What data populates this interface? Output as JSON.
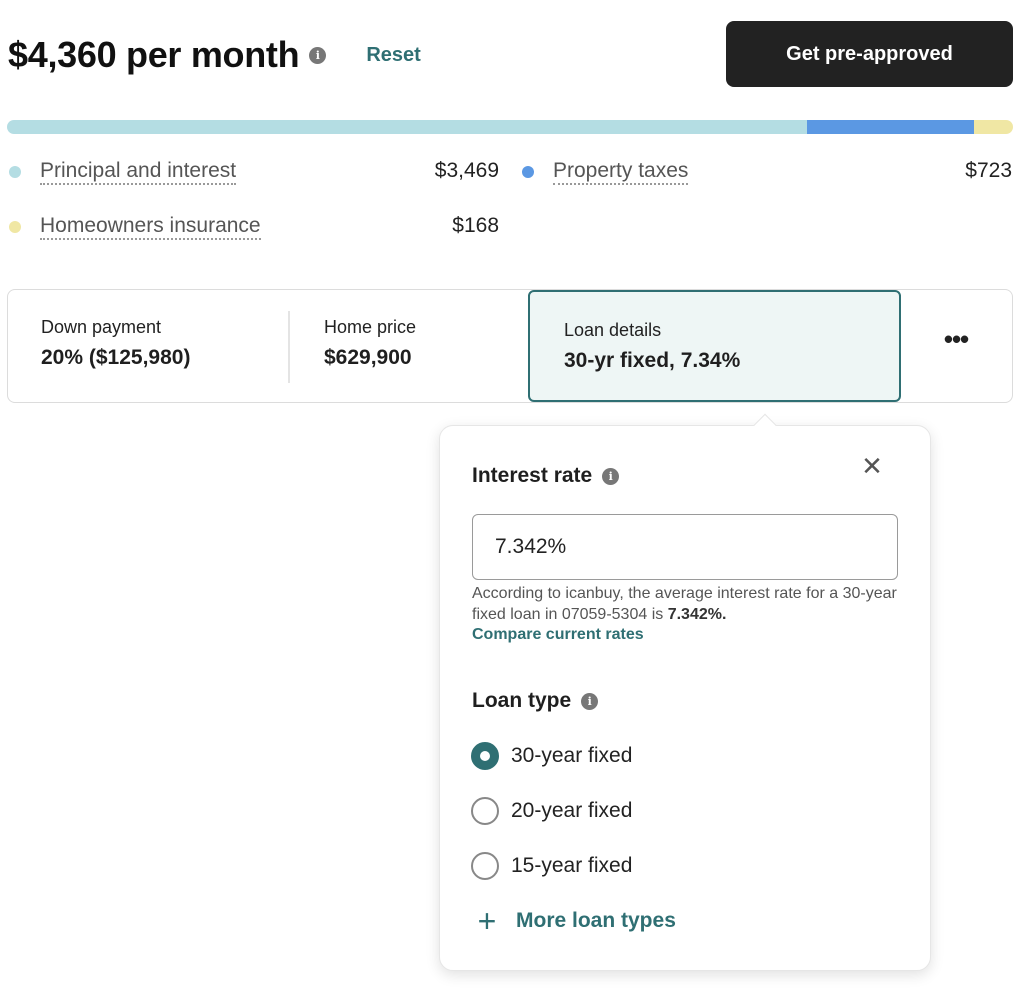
{
  "header": {
    "monthly_payment": "$4,360 per month",
    "info_icon": "info-icon",
    "reset_label": "Reset",
    "preapproved_label": "Get pre-approved"
  },
  "breakdown_bar": {
    "segments": [
      {
        "name": "Principal and interest",
        "fraction": 0.7957,
        "color": "#b4dde3"
      },
      {
        "name": "Property taxes",
        "fraction": 0.1658,
        "color": "#5b98e3"
      },
      {
        "name": "Homeowners insurance",
        "fraction": 0.0385,
        "color": "#f0e7a4"
      }
    ]
  },
  "legend": [
    {
      "label": "Principal and interest",
      "value": "$3,469",
      "color": "#b4dde3"
    },
    {
      "label": "Property taxes",
      "value": "$723",
      "color": "#5b98e3"
    },
    {
      "label": "Homeowners insurance",
      "value": "$168",
      "color": "#f0e7a4"
    }
  ],
  "summary": {
    "down_payment": {
      "label": "Down payment",
      "value": "20% ($125,980)"
    },
    "home_price": {
      "label": "Home price",
      "value": "$629,900"
    },
    "loan_details": {
      "label": "Loan details",
      "value": "30-yr fixed, 7.34%"
    },
    "more_icon": "more-horizontal-icon"
  },
  "popover": {
    "interest_rate": {
      "title": "Interest rate",
      "value": "7.342%",
      "helper_text": "According to icanbuy, the average interest rate for a 30-year fixed loan in 07059-5304 is ",
      "helper_bold": "7.342%.",
      "compare_link": "Compare current rates"
    },
    "loan_type": {
      "title": "Loan type",
      "options": [
        {
          "label": "30-year fixed",
          "selected": true
        },
        {
          "label": "20-year fixed",
          "selected": false
        },
        {
          "label": "15-year fixed",
          "selected": false
        }
      ],
      "more_label": "More loan types"
    },
    "close_icon": "close-icon"
  },
  "colors": {
    "accent": "#2f6f73",
    "dark_button": "#222222"
  }
}
